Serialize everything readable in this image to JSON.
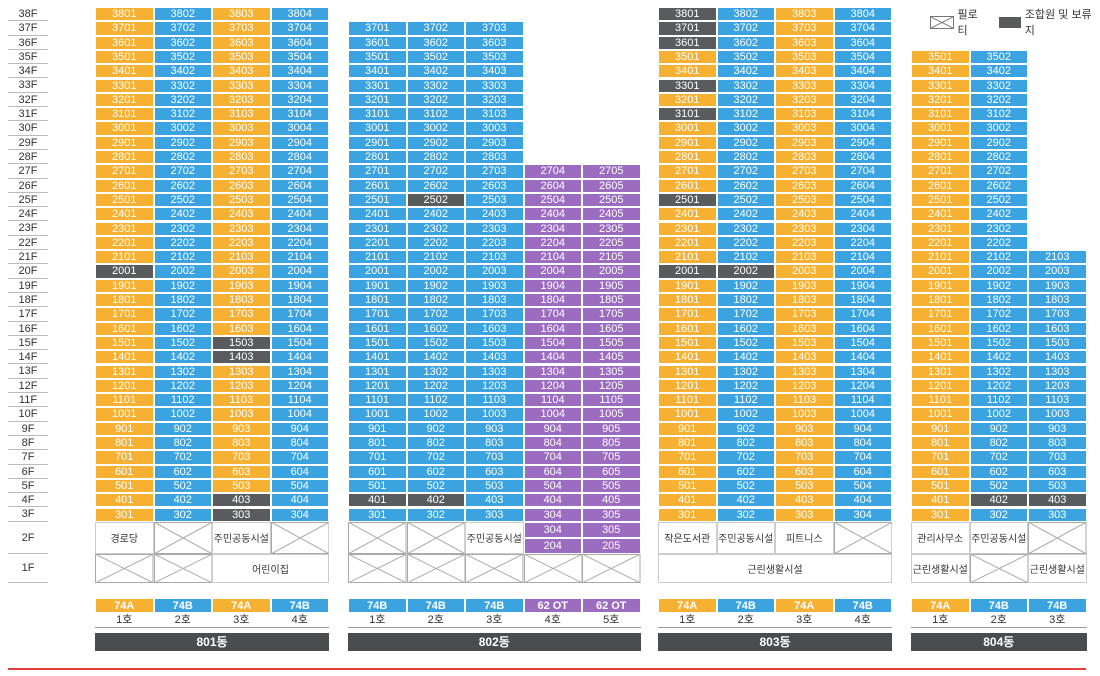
{
  "legend": {
    "piloti": "필로티",
    "reserved": "조합원 및 보류지"
  },
  "floors": [
    "38F",
    "37F",
    "36F",
    "35F",
    "34F",
    "33F",
    "32F",
    "31F",
    "30F",
    "29F",
    "28F",
    "27F",
    "26F",
    "25F",
    "24F",
    "23F",
    "22F",
    "21F",
    "20F",
    "19F",
    "18F",
    "17F",
    "16F",
    "15F",
    "14F",
    "13F",
    "12F",
    "11F",
    "10F",
    "9F",
    "8F",
    "7F",
    "6F",
    "5F",
    "4F",
    "3F"
  ],
  "floors_low": [
    "2F",
    "1F"
  ],
  "buildings": [
    {
      "name": "801동",
      "columns": [
        {
          "top": 38,
          "type": "74A",
          "unit": "1호",
          "color": "#f6b133"
        },
        {
          "top": 38,
          "type": "74B",
          "unit": "2호",
          "color": "#3aa3e0"
        },
        {
          "top": 38,
          "type": "74A",
          "unit": "3호",
          "color": "#f6b133"
        },
        {
          "top": 38,
          "type": "74B",
          "unit": "4호",
          "color": "#3aa3e0"
        }
      ],
      "gray": [
        "2001",
        "1503",
        "1403",
        "403",
        "303"
      ],
      "floor2": [
        "경로당",
        "",
        "주민공동시설",
        ""
      ],
      "floor1": [
        "",
        "",
        "어린이집",
        "어린이집"
      ]
    },
    {
      "name": "802동",
      "columns": [
        {
          "top": 37,
          "type": "74B",
          "unit": "1호",
          "color": "#3aa3e0"
        },
        {
          "top": 37,
          "type": "74B",
          "unit": "2호",
          "color": "#3aa3e0"
        },
        {
          "top": 37,
          "type": "74B",
          "unit": "3호",
          "color": "#3aa3e0"
        },
        {
          "top": 27,
          "type": "62 OT",
          "unit": "4호",
          "color": "#9b6cc0"
        },
        {
          "top": 27,
          "type": "62 OT",
          "unit": "5호",
          "color": "#9b6cc0"
        }
      ],
      "gray": [
        "2502",
        "401",
        "402"
      ],
      "floor2": [
        "",
        "",
        "주민공동시설",
        "304|204",
        "305|205"
      ],
      "floor1": [
        "",
        "",
        "",
        "",
        ""
      ]
    },
    {
      "name": "803동",
      "columns": [
        {
          "top": 38,
          "type": "74A",
          "unit": "1호",
          "color": "#f6b133"
        },
        {
          "top": 38,
          "type": "74B",
          "unit": "2호",
          "color": "#3aa3e0"
        },
        {
          "top": 38,
          "type": "74A",
          "unit": "3호",
          "color": "#f6b133"
        },
        {
          "top": 38,
          "type": "74B",
          "unit": "4호",
          "color": "#3aa3e0"
        }
      ],
      "gray": [
        "3801",
        "3701",
        "3601",
        "3301",
        "3101",
        "2501",
        "2001",
        "2002"
      ],
      "floor2": [
        "작은도서관",
        "주민공동시설",
        "피트니스",
        ""
      ],
      "floor1": [
        "근린생활시설"
      ]
    },
    {
      "name": "804동",
      "columns": [
        {
          "top": 35,
          "type": "74A",
          "unit": "1호",
          "color": "#f6b133"
        },
        {
          "top": 35,
          "type": "74B",
          "unit": "2호",
          "color": "#3aa3e0"
        },
        {
          "top": 21,
          "type": "74B",
          "unit": "3호",
          "color": "#3aa3e0"
        }
      ],
      "gray": [
        "402",
        "403"
      ],
      "floor2": [
        "관리사무소",
        "주민공동시설",
        ""
      ],
      "floor1": [
        "근린생활시설",
        "",
        "근린생활시설"
      ]
    }
  ]
}
